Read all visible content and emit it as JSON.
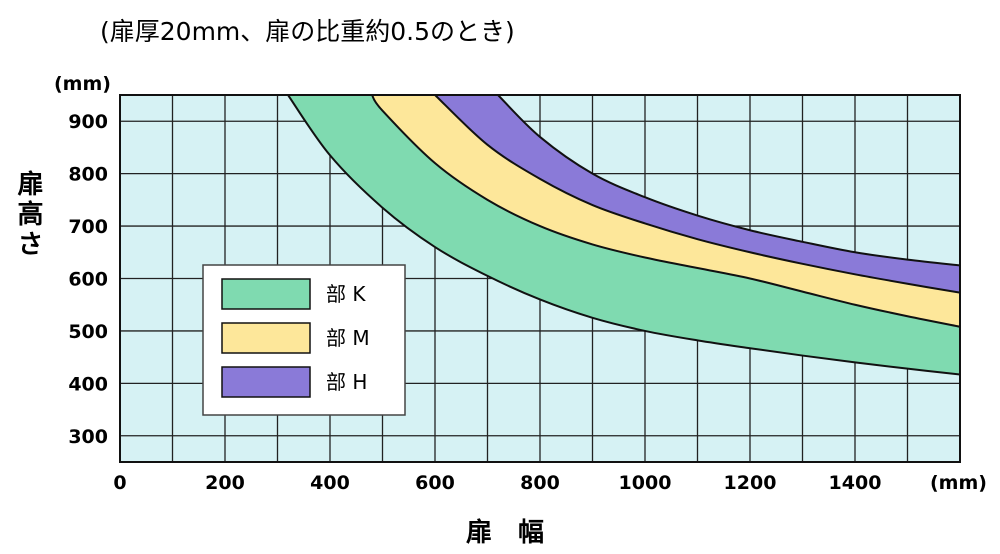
{
  "chart_data": {
    "type": "area",
    "title": "(扉厚20mm、扉の比重約0.5のとき)",
    "xlabel": "扉　幅",
    "ylabel": "扉高さ",
    "x_unit": "(mm)",
    "y_unit": "(mm)",
    "xlim": [
      0,
      1600
    ],
    "ylim": [
      250,
      950
    ],
    "x_ticks": [
      0,
      200,
      400,
      600,
      800,
      1000,
      1200,
      1400
    ],
    "x_tick_labels": [
      "0",
      "200",
      "400",
      "600",
      "800",
      "1000",
      "1200",
      "1400"
    ],
    "y_ticks": [
      300,
      400,
      500,
      600,
      700,
      800,
      900
    ],
    "y_tick_labels": [
      "300",
      "400",
      "500",
      "600",
      "700",
      "800",
      "900"
    ],
    "grid": true,
    "legend_position": "left",
    "background_color": "#d6f2f4",
    "series": [
      {
        "name": "部 K",
        "color": "#7fdab0",
        "lower": {
          "x": [
            320,
            400,
            500,
            600,
            700,
            800,
            900,
            1000,
            1100,
            1200,
            1300,
            1400,
            1500,
            1600
          ],
          "y": [
            950,
            835,
            735,
            660,
            605,
            560,
            525,
            500,
            482,
            467,
            453,
            440,
            428,
            417
          ]
        },
        "upper": {
          "x": [
            480,
            500,
            600,
            700,
            800,
            900,
            1000,
            1100,
            1200,
            1300,
            1400,
            1500,
            1600
          ],
          "y": [
            950,
            920,
            820,
            750,
            700,
            665,
            640,
            620,
            600,
            575,
            550,
            528,
            508
          ]
        }
      },
      {
        "name": "部 M",
        "color": "#fde79a",
        "lower": {
          "x": [
            480,
            500,
            600,
            700,
            800,
            900,
            1000,
            1100,
            1200,
            1300,
            1400,
            1500,
            1600
          ],
          "y": [
            950,
            920,
            820,
            750,
            700,
            665,
            640,
            620,
            600,
            575,
            550,
            528,
            508
          ]
        },
        "upper": {
          "x": [
            600,
            700,
            800,
            900,
            1000,
            1100,
            1200,
            1300,
            1400,
            1500,
            1600
          ],
          "y": [
            950,
            855,
            790,
            740,
            705,
            675,
            650,
            628,
            608,
            590,
            573
          ]
        }
      },
      {
        "name": "部 H",
        "color": "#8a7ad8",
        "lower": {
          "x": [
            600,
            700,
            800,
            900,
            1000,
            1100,
            1200,
            1300,
            1400,
            1500,
            1600
          ],
          "y": [
            950,
            855,
            790,
            740,
            705,
            675,
            650,
            628,
            608,
            590,
            573
          ]
        },
        "upper": {
          "x": [
            720,
            800,
            900,
            1000,
            1100,
            1200,
            1300,
            1400,
            1500,
            1600
          ],
          "y": [
            950,
            870,
            800,
            755,
            720,
            692,
            670,
            650,
            636,
            625
          ]
        }
      }
    ]
  }
}
